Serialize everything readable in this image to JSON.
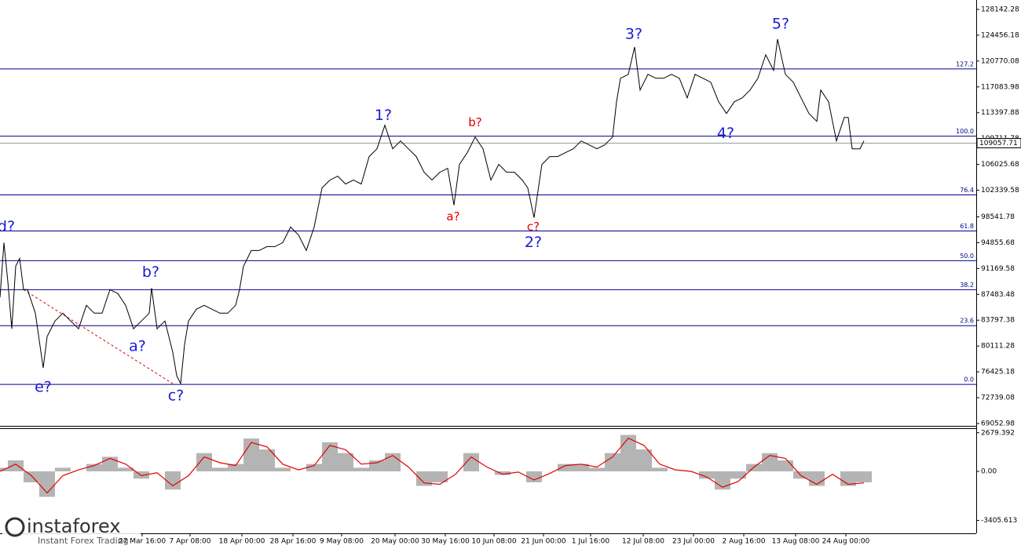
{
  "chart_data": [
    {
      "type": "line",
      "color": "#000000",
      "x": [
        0,
        5,
        10,
        15,
        20,
        25,
        30,
        35,
        45,
        55,
        60,
        70,
        80,
        90,
        100,
        110,
        120,
        130,
        140,
        150,
        160,
        170,
        180,
        190,
        193,
        200,
        210,
        220,
        225,
        230,
        235,
        240,
        250,
        260,
        270,
        280,
        290,
        300,
        305,
        310,
        320,
        330,
        340,
        350,
        360,
        370,
        380,
        390,
        400,
        410,
        420,
        430,
        440,
        450,
        460,
        470,
        480,
        490,
        500,
        510,
        520,
        530,
        540,
        550,
        560,
        570,
        578,
        585,
        595,
        605,
        615,
        625,
        635,
        645,
        655,
        665,
        672,
        680,
        690,
        700,
        710,
        720,
        730,
        740,
        750,
        760,
        770,
        780,
        785,
        790,
        800,
        808,
        815,
        825,
        835,
        845,
        855,
        865,
        875,
        885,
        895,
        905,
        915,
        925,
        935,
        945,
        955,
        965,
        975,
        985,
        990,
        1000,
        1010,
        1020,
        1030,
        1040,
        1045,
        1055,
        1065,
        1075,
        1080,
        1085,
        1095,
        1100
      ],
      "values": [
        87036,
        94855,
        89270,
        82568,
        91504,
        92621,
        88153,
        88153,
        84802,
        76983,
        81451,
        83685,
        84802,
        83685,
        82568,
        85919,
        84802,
        84802,
        88153,
        87594,
        85919,
        82568,
        83685,
        84802,
        88376,
        82568,
        83685,
        79217,
        75866,
        74749,
        80334,
        83685,
        85360,
        85919,
        85360,
        84802,
        84802,
        85919,
        88153,
        91504,
        93738,
        93738,
        94296,
        94296,
        94855,
        97089,
        95972,
        93738,
        97089,
        102674,
        103791,
        104349,
        103232,
        103791,
        103232,
        107142,
        108259,
        111610,
        108259,
        109376,
        108259,
        107142,
        104908,
        103791,
        104908,
        105466,
        100217,
        106025,
        107700,
        109934,
        108259,
        103791,
        106025,
        104908,
        104908,
        103791,
        102674,
        98429,
        106025,
        107142,
        107142,
        107700,
        108259,
        109376,
        108817,
        108259,
        108817,
        109934,
        114961,
        118312,
        118870,
        122780,
        116636,
        118870,
        118312,
        118312,
        118870,
        118312,
        115519,
        118870,
        118312,
        117753,
        114961,
        113285,
        114961,
        115519,
        116636,
        118312,
        121663,
        119429,
        123897,
        118870,
        117753,
        115519,
        113285,
        112168,
        116636,
        114961,
        109376,
        112727,
        112727,
        108259,
        108259,
        109376
      ],
      "xlim": [
        0,
        1243
      ],
      "ylim": [
        68718,
        129482
      ],
      "yticks": [
        128142.28,
        124456.18,
        120770.08,
        117083.98,
        113397.88,
        109711.78,
        106025.68,
        102339.58,
        98541.78,
        94855.68,
        91169.58,
        87483.48,
        83797.38,
        80111.28,
        76425.18,
        72739.08,
        69052.98
      ],
      "xticks": [
        {
          "value": 181,
          "label": "27 Mar 16:00"
        },
        {
          "value": 242,
          "label": "7 Apr 08:00"
        },
        {
          "value": 308,
          "label": "18 Apr 00:00"
        },
        {
          "value": 373,
          "label": "28 Apr 16:00"
        },
        {
          "value": 435,
          "label": "9 May 08:00"
        },
        {
          "value": 503,
          "label": "20 May 00:00"
        },
        {
          "value": 567,
          "label": "30 May 16:00"
        },
        {
          "value": 629,
          "label": "10 Jun 08:00"
        },
        {
          "value": 692,
          "label": "21 Jun 00:00"
        },
        {
          "value": 752,
          "label": "1 Jul 16:00"
        },
        {
          "value": 819,
          "label": "12 Jul 08:00"
        },
        {
          "value": 883,
          "label": "23 Jul 00:00"
        },
        {
          "value": 947,
          "label": "2 Aug 16:00"
        },
        {
          "value": 1013,
          "label": "13 Aug 08:00"
        },
        {
          "value": 1077,
          "label": "24 Aug 00:00"
        }
      ],
      "levels": [
        {
          "name": "127.2",
          "value": 119653
        },
        {
          "name": "100.0",
          "value": 110047
        },
        {
          "name": "76.4",
          "value": 101670
        },
        {
          "name": "61.8",
          "value": 96532
        },
        {
          "name": "50.0",
          "value": 92287
        },
        {
          "name": "38.2",
          "value": 88154
        },
        {
          "name": "23.6",
          "value": 83016
        },
        {
          "name": "0.0",
          "value": 74639
        }
      ],
      "level_color": "#00008b",
      "last_price": 109057.71,
      "trendline": {
        "x": [
          30,
          220
        ],
        "values": [
          88153,
          74749
        ],
        "color": "#e00000"
      },
      "annotations": [
        {
          "text": "d?",
          "x": 8,
          "y": 97089,
          "color": "#1a1ad6"
        },
        {
          "text": "e?",
          "x": 55,
          "y": 74191,
          "color": "#1a1ad6"
        },
        {
          "text": "b?",
          "x": 192,
          "y": 90611,
          "color": "#1a1ad6"
        },
        {
          "text": "a?",
          "x": 175,
          "y": 79999,
          "color": "#1a1ad6"
        },
        {
          "text": "c?",
          "x": 224,
          "y": 72960,
          "color": "#1a1ad6"
        },
        {
          "text": "1?",
          "x": 488,
          "y": 112950,
          "color": "#1a1ad6"
        },
        {
          "text": "b?",
          "x": 605,
          "y": 111945,
          "color": "#e00000"
        },
        {
          "text": "a?",
          "x": 577,
          "y": 98541,
          "color": "#e00000"
        },
        {
          "text": "c?",
          "x": 679,
          "y": 97089,
          "color": "#e00000"
        },
        {
          "text": "2?",
          "x": 679,
          "y": 94855,
          "color": "#1a1ad6"
        },
        {
          "text": "3?",
          "x": 807,
          "y": 124567,
          "color": "#1a1ad6"
        },
        {
          "text": "4?",
          "x": 924,
          "y": 110381,
          "color": "#1a1ad6"
        },
        {
          "text": "5?",
          "x": 994,
          "y": 126019,
          "color": "#1a1ad6"
        }
      ],
      "watermark": {
        "brand": "instaforex",
        "tagline": "Instant Forex Trading"
      }
    },
    {
      "type": "macd",
      "x": [
        0,
        20,
        40,
        60,
        80,
        100,
        120,
        140,
        160,
        180,
        200,
        220,
        240,
        260,
        280,
        300,
        320,
        340,
        360,
        380,
        400,
        420,
        440,
        460,
        480,
        500,
        520,
        540,
        560,
        580,
        600,
        620,
        640,
        660,
        680,
        700,
        720,
        740,
        760,
        780,
        800,
        820,
        840,
        860,
        880,
        900,
        920,
        940,
        960,
        980,
        1000,
        1020,
        1040,
        1060,
        1080,
        1100
      ],
      "values": [
        250,
        760,
        -760,
        -1770,
        250,
        0,
        510,
        1010,
        250,
        -510,
        0,
        -1265,
        0,
        1265,
        250,
        510,
        2280,
        1520,
        250,
        0,
        510,
        2020,
        1265,
        250,
        760,
        1265,
        0,
        -1010,
        -760,
        0,
        1265,
        0,
        -250,
        0,
        -760,
        0,
        510,
        510,
        250,
        1265,
        2530,
        1520,
        250,
        0,
        0,
        -510,
        -1265,
        -510,
        510,
        1265,
        760,
        -510,
        -1010,
        0,
        -1010,
        -760
      ],
      "signal": [
        0,
        500,
        -300,
        -1500,
        -300,
        100,
        400,
        900,
        500,
        -300,
        -100,
        -1000,
        -300,
        1000,
        600,
        400,
        2000,
        1700,
        500,
        100,
        400,
        1800,
        1500,
        500,
        600,
        1100,
        300,
        -800,
        -900,
        -200,
        1000,
        300,
        -200,
        -50,
        -600,
        -150,
        400,
        500,
        300,
        1000,
        2300,
        1800,
        500,
        100,
        0,
        -400,
        -1100,
        -700,
        300,
        1100,
        900,
        -300,
        -900,
        -200,
        -900,
        -800
      ],
      "hist_color": "#b4b4b4",
      "signal_color": "#e00000",
      "ylim": [
        -4301,
        2884
      ],
      "yticks": [
        2679.392,
        {
          "value": 0,
          "label": "0.00"
        },
        -3405.613
      ]
    }
  ]
}
